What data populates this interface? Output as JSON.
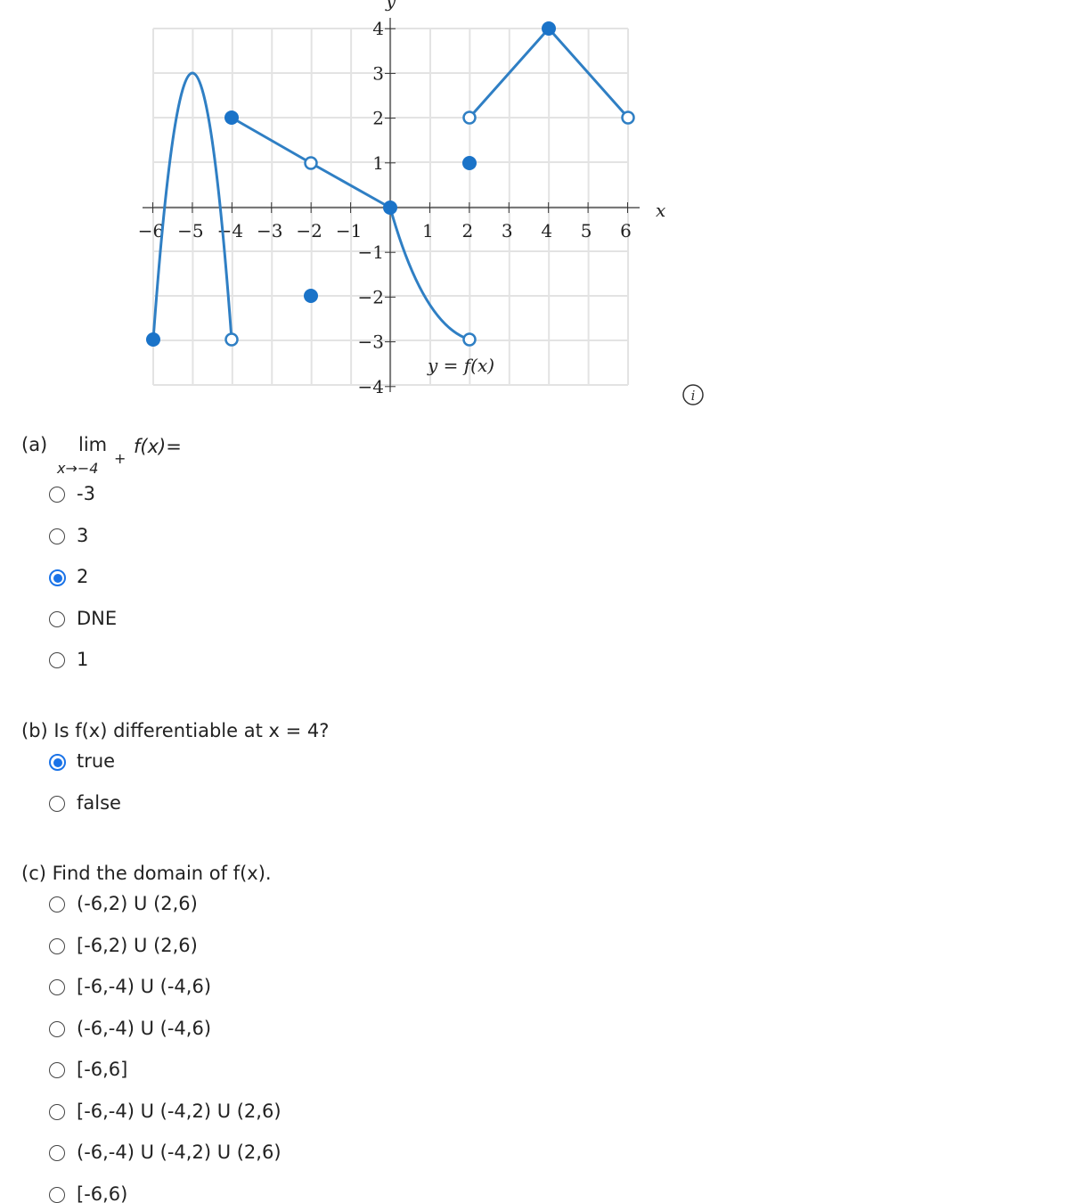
{
  "graph": {
    "y_axis_label": "y",
    "x_axis_label": "x",
    "curve_label": "y = f(x)",
    "x_tick_labels": [
      "−6",
      "−5",
      "−4",
      "−3",
      "−2",
      "−1",
      "1",
      "2",
      "3",
      "4",
      "5",
      "6"
    ],
    "y_tick_labels": [
      "4",
      "3",
      "2",
      "1",
      "−1",
      "−2",
      "−3",
      "−4"
    ]
  },
  "question_a": {
    "label": "(a)",
    "lim": "lim",
    "subscript": "x→−4",
    "superscript": "+",
    "expression": "f(x)=",
    "options": [
      "-3",
      "3",
      "2",
      "DNE",
      "1"
    ],
    "selected_index": 2
  },
  "question_b": {
    "text": "(b) Is f(x) differentiable at x = 4?",
    "options": [
      "true",
      "false"
    ],
    "selected_index": 0
  },
  "question_c": {
    "text": "(c) Find the domain of f(x).",
    "options": [
      "(-6,2) U (2,6)",
      "[-6,2) U (2,6)",
      "[-6,-4) U (-4,6)",
      "(-6,-4) U (-4,6)",
      "[-6,6]",
      "[-6,-4) U (-4,2) U (2,6)",
      "(-6,-4) U (-4,2) U (2,6)",
      "[-6,6)"
    ]
  }
}
